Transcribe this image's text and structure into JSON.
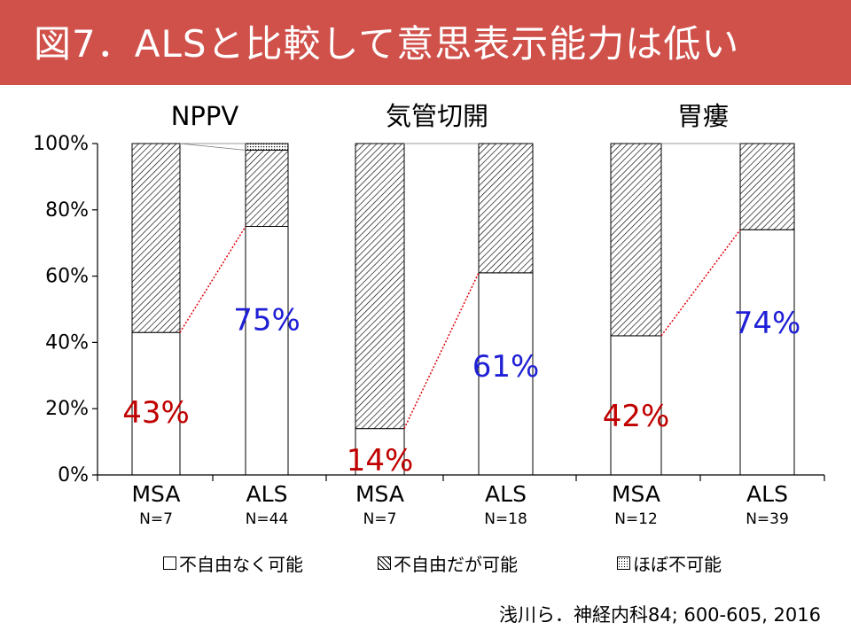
{
  "page": {
    "title": "図7．ALSと比較して意思表示能力は低い",
    "citation": "浅川ら．神経内科84; 600-605, 2016"
  },
  "colors": {
    "title_bar": "#d0504a",
    "title_text": "#ffffff",
    "msa_label": "#c00000",
    "als_label": "#1f1fd6",
    "connector": "#e0000a"
  },
  "chart_data": {
    "type": "bar",
    "stacked": true,
    "percent": true,
    "ylim": [
      0,
      100
    ],
    "yticks": [
      "0%",
      "20%",
      "40%",
      "60%",
      "80%",
      "100%"
    ],
    "grid": false,
    "legend_position": "bottom",
    "legend": [
      {
        "label": "不自由なく可能",
        "pattern": "blank"
      },
      {
        "label": "不自由だが可能",
        "pattern": "hatch"
      },
      {
        "label": "ほぼ不可能",
        "pattern": "dots"
      }
    ],
    "groups": [
      {
        "title": "NPPV",
        "bars": [
          {
            "label": "MSA",
            "n": "N=7",
            "segments": [
              43,
              57,
              0
            ],
            "data_label": "43%",
            "label_color": "msa"
          },
          {
            "label": "ALS",
            "n": "N=44",
            "segments": [
              75,
              23,
              2
            ],
            "data_label": "75%",
            "label_color": "als"
          }
        ]
      },
      {
        "title": "気管切開",
        "bars": [
          {
            "label": "MSA",
            "n": "N=7",
            "segments": [
              14,
              86,
              0
            ],
            "data_label": "14%",
            "label_color": "msa"
          },
          {
            "label": "ALS",
            "n": "N=18",
            "segments": [
              61,
              39,
              0
            ],
            "data_label": "61%",
            "label_color": "als"
          }
        ]
      },
      {
        "title": "胃瘻",
        "bars": [
          {
            "label": "MSA",
            "n": "N=12",
            "segments": [
              42,
              58,
              0
            ],
            "data_label": "42%",
            "label_color": "msa"
          },
          {
            "label": "ALS",
            "n": "N=39",
            "segments": [
              74,
              26,
              0
            ],
            "data_label": "74%",
            "label_color": "als"
          }
        ]
      }
    ]
  }
}
